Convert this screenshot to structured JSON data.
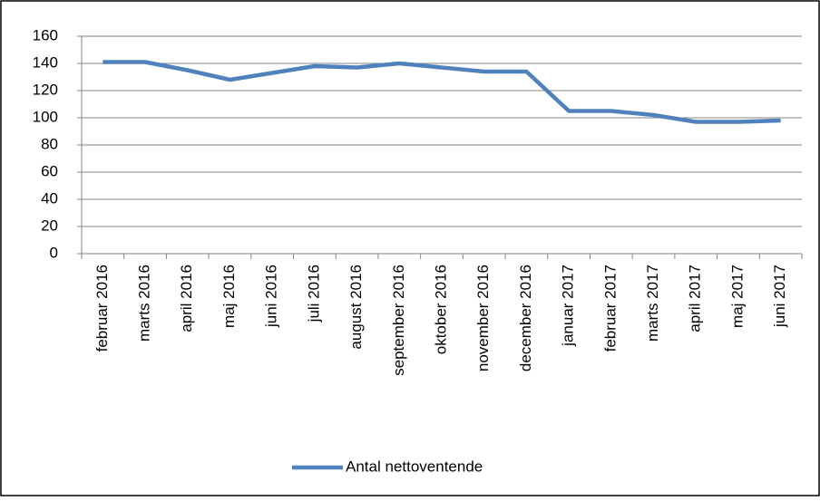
{
  "chart_data": {
    "type": "line",
    "categories": [
      "februar 2016",
      "marts 2016",
      "april 2016",
      "maj 2016",
      "juni 2016",
      "juli 2016",
      "august 2016",
      "september 2016",
      "oktober 2016",
      "november 2016",
      "december 2016",
      "januar 2017",
      "februar 2017",
      "marts 2017",
      "april 2017",
      "maj 2017",
      "juni 2017"
    ],
    "series": [
      {
        "name": "Antal nettoventende",
        "color": "#4f81bd",
        "values": [
          141,
          141,
          135,
          128,
          133,
          138,
          137,
          140,
          137,
          134,
          134,
          105,
          105,
          102,
          97,
          97,
          98
        ]
      }
    ],
    "ylim": [
      0,
      160
    ],
    "yticks": [
      0,
      20,
      40,
      60,
      80,
      100,
      120,
      140,
      160
    ],
    "grid": true,
    "legend": "bottom"
  }
}
